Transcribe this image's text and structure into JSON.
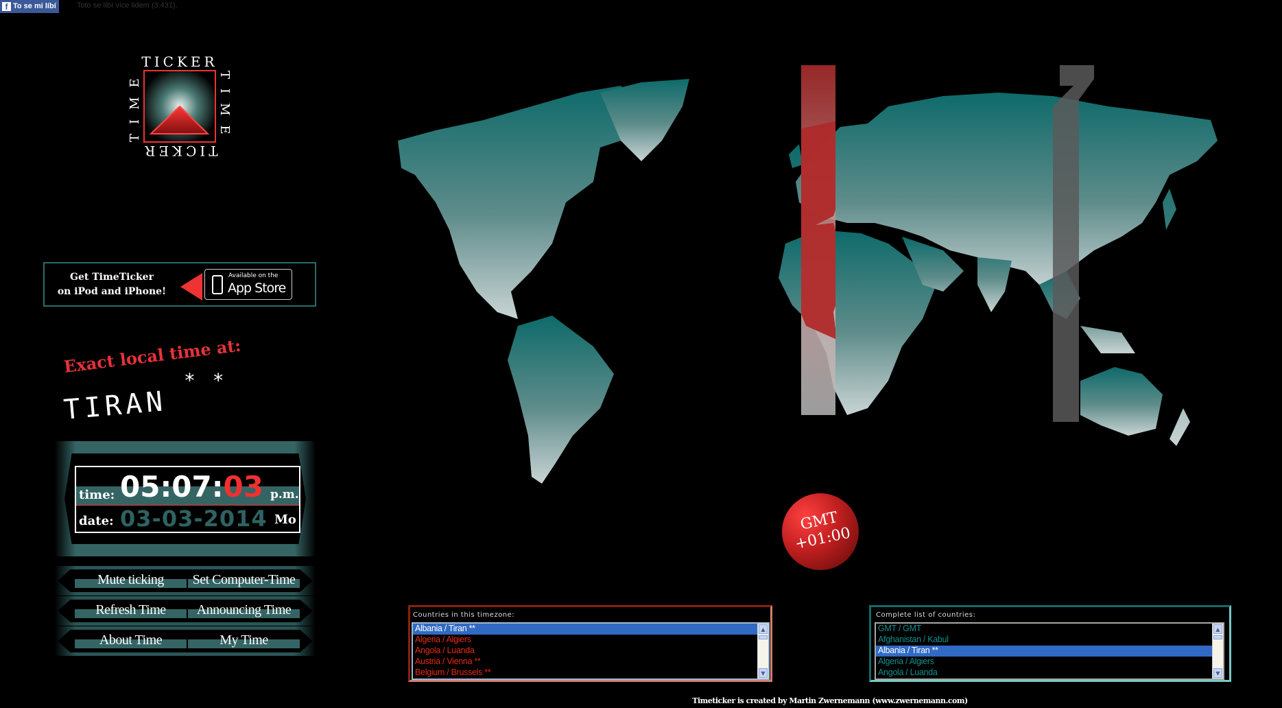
{
  "facebook": {
    "like_label": "To se mi líbí",
    "like_count_text": "Toto se líbí více lidem (3.431)."
  },
  "logo": {
    "top": "TICKER",
    "bottom": "TICKER",
    "left": "TIME",
    "right": "TIME"
  },
  "promo": {
    "line1": "Get TimeTicker",
    "line2": "on iPod and  iPhone!",
    "store_small": "Available on the",
    "store_big": "App Store"
  },
  "location": {
    "heading": "Exact local time at:",
    "city": "TIRAN",
    "marker": "* *"
  },
  "clock": {
    "time_label": "time:",
    "hh": "05",
    "mm": "07",
    "ss": "03",
    "ampm": "p.m.",
    "date_label": "date:",
    "date": "03-03-2014",
    "weekday": "Mo"
  },
  "buttons": [
    {
      "label": "Mute ticking"
    },
    {
      "label": "Set Computer-Time"
    },
    {
      "label": "Refresh Time"
    },
    {
      "label": "Announcing Time"
    },
    {
      "label": "About Time"
    },
    {
      "label": "My Time"
    }
  ],
  "timezone": {
    "label": "GMT",
    "offset": "+01:00",
    "band_color": "#b02a2a",
    "other_band_color": "#5a5a5a"
  },
  "timezone_list": {
    "caption": "Countries in this timezone:",
    "selected": "Albania / Tiran **",
    "options": [
      "Albania / Tiran **",
      "Algeria / Algiers",
      "Angola / Luanda",
      "Austria / Vienna **",
      "Belgium / Brussels **"
    ]
  },
  "country_list": {
    "caption": "Complete list of countries:",
    "selected": "Albania / Tiran **",
    "options": [
      "GMT / GMT",
      "Afghanistan / Kabul",
      "Albania / Tiran **",
      "Algeria / Algiers",
      "Angola / Luanda"
    ]
  },
  "footer": "Timeticker is created by Martin Zwernemann (www.zwernemann.com)",
  "colors": {
    "accent_red": "#e8323a",
    "teal": "#356464",
    "map_top": "#0e6a6a",
    "map_bottom": "#c9d4d4",
    "selection": "#316ac5"
  }
}
